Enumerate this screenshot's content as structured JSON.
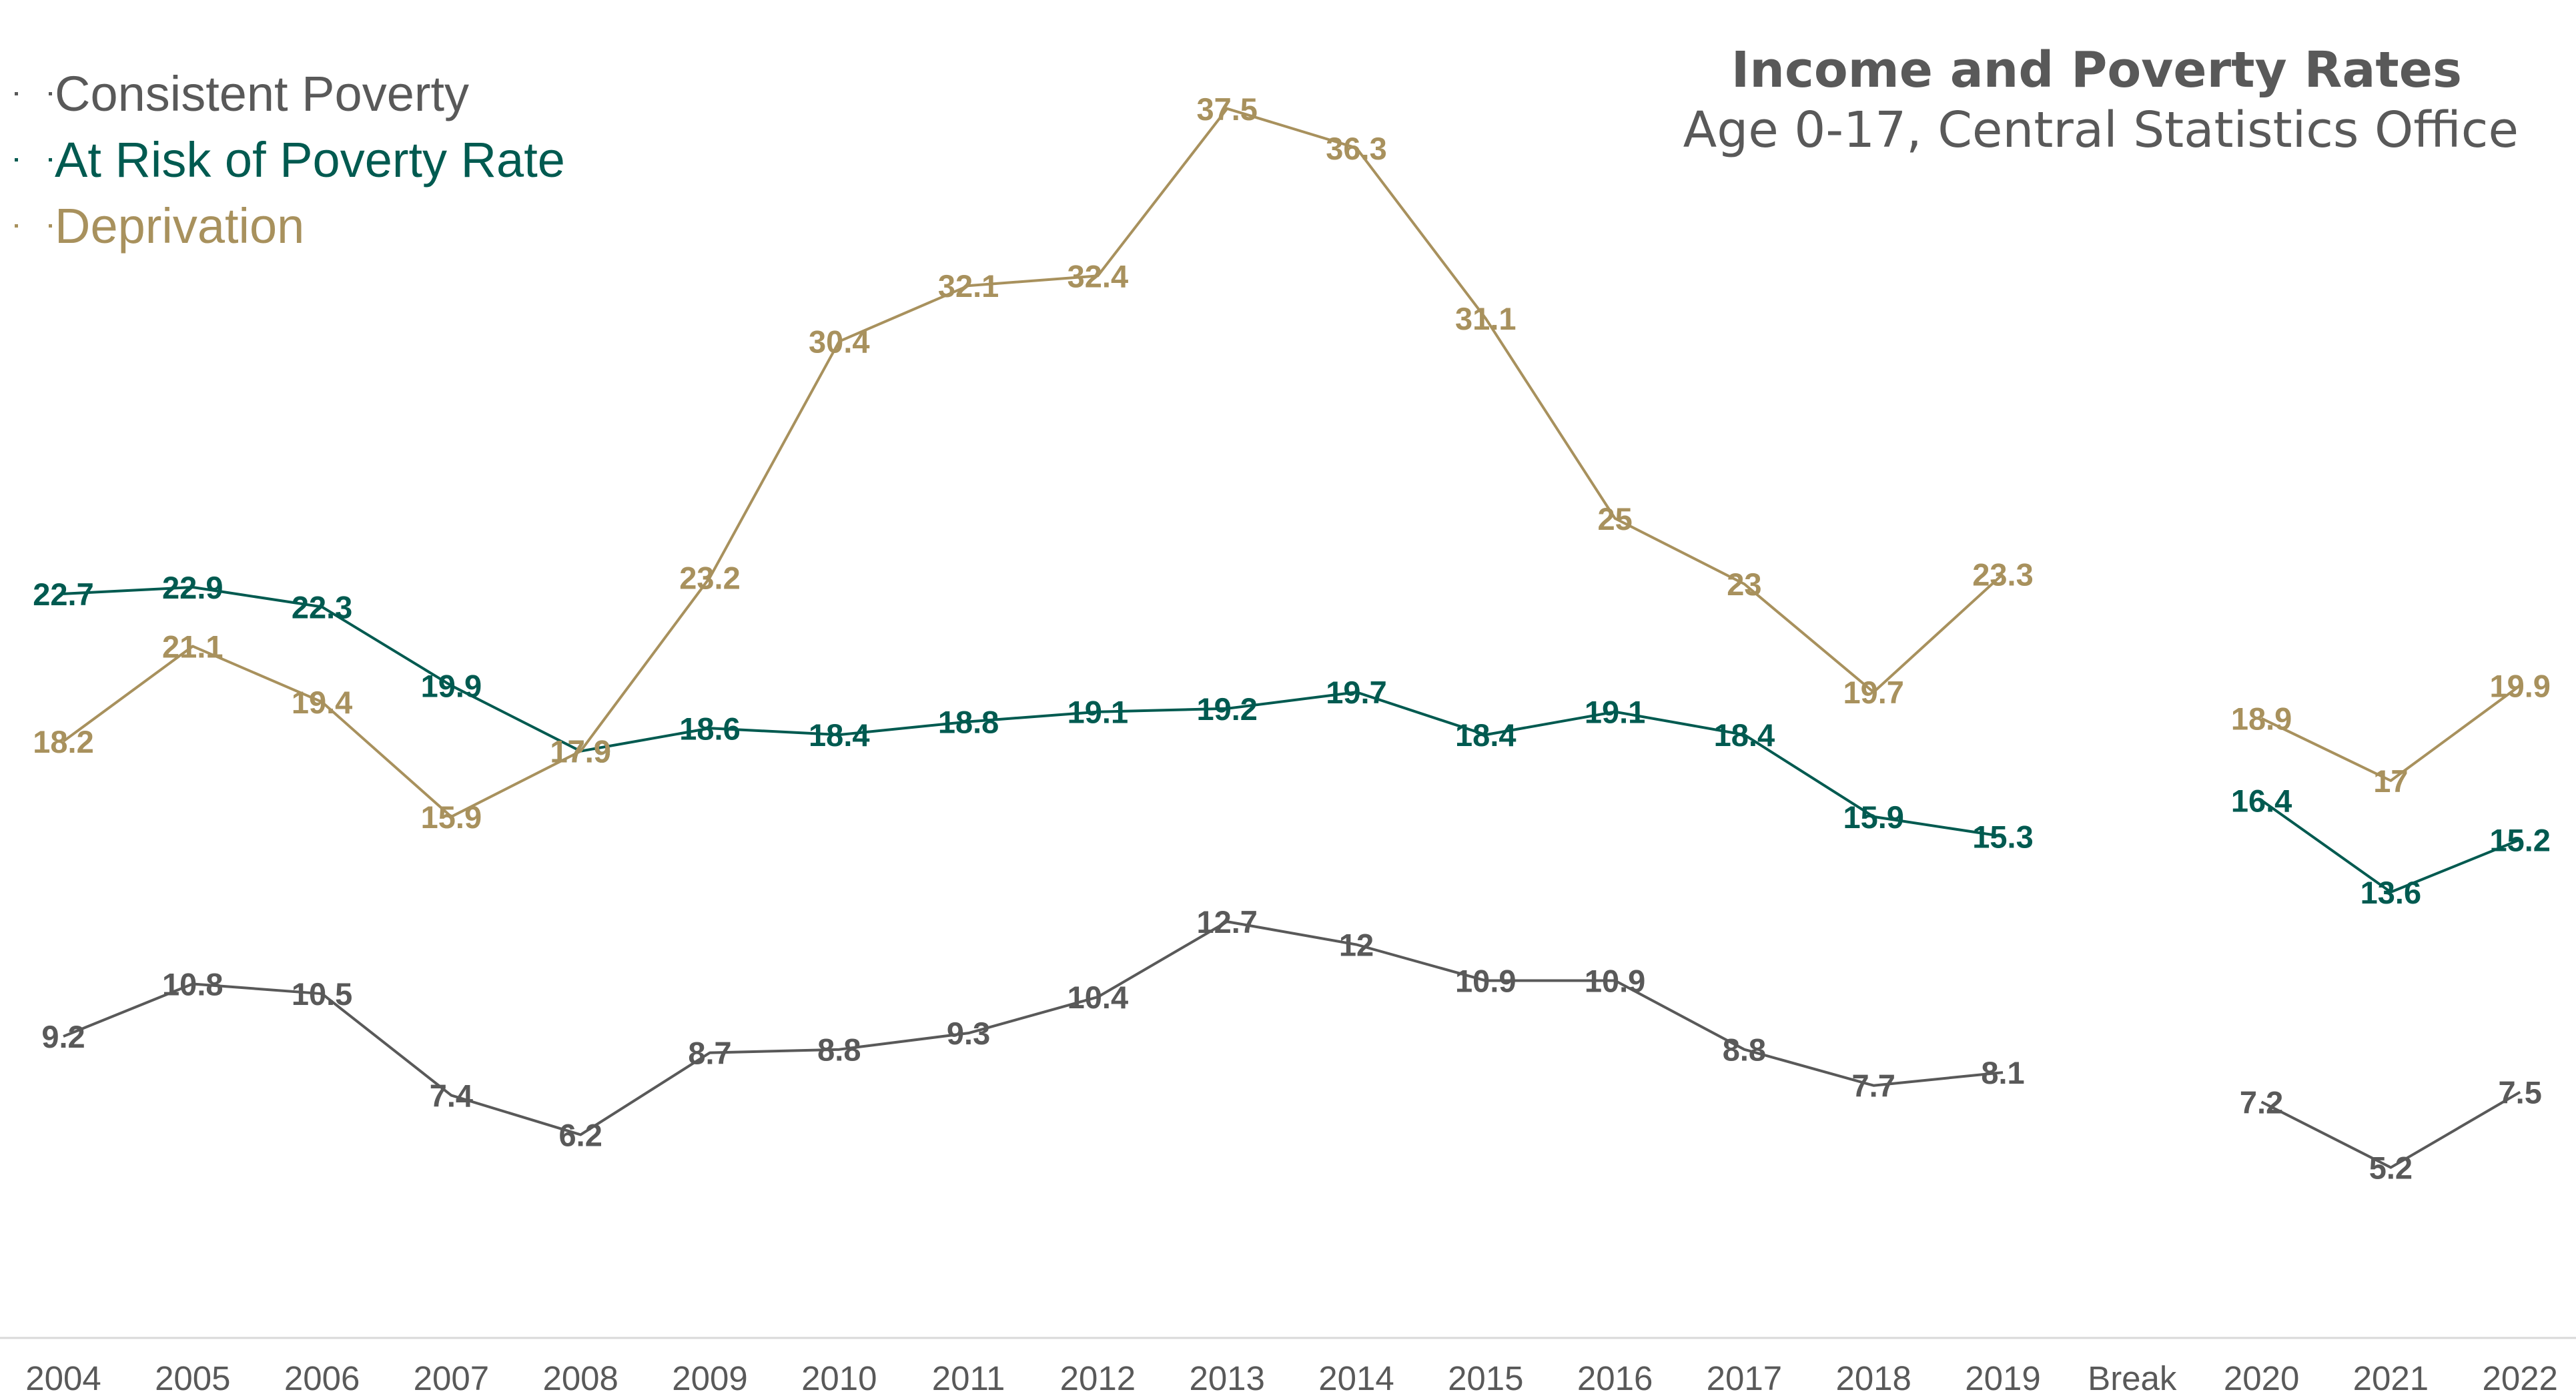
{
  "chart_data": {
    "type": "line",
    "title": "Income and Poverty Rates",
    "subtitle": "Age 0-17, Central Statistics Office",
    "categories": [
      "2004",
      "2005",
      "2006",
      "2007",
      "2008",
      "2009",
      "2010",
      "2011",
      "2012",
      "2013",
      "2014",
      "2015",
      "2016",
      "2017",
      "2018",
      "2019",
      "Break",
      "2020",
      "2021",
      "2022"
    ],
    "ylim": [
      0,
      40
    ],
    "grid": false,
    "legend_position": "top-left",
    "series": [
      {
        "name": "Consistent Poverty",
        "color": "#595959",
        "values": [
          9.2,
          10.8,
          10.5,
          7.4,
          6.2,
          8.7,
          8.8,
          9.3,
          10.4,
          12.7,
          12,
          10.9,
          10.9,
          8.8,
          7.7,
          8.1,
          null,
          7.2,
          5.2,
          7.5
        ],
        "labels": [
          "9.2",
          "10.8",
          "10.5",
          "7.4",
          "6.2",
          "8.7",
          "8.8",
          "9.3",
          "10.4",
          "12.7",
          "12",
          "10.9",
          "10.9",
          "8.8",
          "7.7",
          "8.1",
          null,
          "7.2",
          "5.2",
          "7.5"
        ]
      },
      {
        "name": "At Risk of Poverty Rate",
        "color": "#005A50",
        "values": [
          22.7,
          22.9,
          22.3,
          19.9,
          17.9,
          18.6,
          18.4,
          18.8,
          19.1,
          19.2,
          19.7,
          18.4,
          19.1,
          18.4,
          15.9,
          15.3,
          null,
          16.4,
          13.6,
          15.2
        ],
        "labels": [
          "22.7",
          "22.9",
          "22.3",
          "19.9",
          "17.9",
          "18.6",
          "18.4",
          "18.8",
          "19.1",
          "19.2",
          "19.7",
          "18.4",
          "19.1",
          "18.4",
          "15.9",
          "15.3",
          null,
          "16.4",
          "13.6",
          "15.2"
        ]
      },
      {
        "name": "Deprivation",
        "color": "#A8915D",
        "values": [
          18.2,
          21.1,
          19.4,
          15.9,
          17.9,
          23.2,
          30.4,
          32.1,
          32.4,
          37.5,
          36.3,
          31.1,
          25,
          23,
          19.7,
          23.3,
          null,
          18.9,
          17,
          19.9
        ],
        "labels": [
          "18.2",
          "21.1",
          "19.4",
          "15.9",
          "17.9",
          "23.2",
          "30.4",
          "32.1",
          "32.4",
          "37.5",
          "36.3",
          "31.1",
          "25",
          "23",
          "19.7",
          "23.3",
          null,
          "18.9",
          "17",
          "19.9"
        ]
      }
    ]
  }
}
